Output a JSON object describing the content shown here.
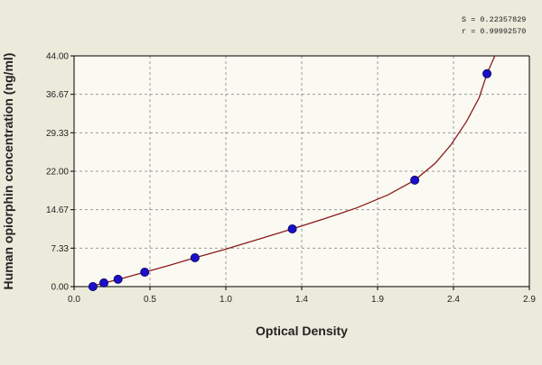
{
  "chart_data": {
    "type": "scatter",
    "title": "",
    "xlabel": "Optical Density",
    "ylabel": "Human opiorphin concentration (ng/ml)",
    "xlim": [
      0.0,
      2.9
    ],
    "ylim": [
      0.0,
      44.0
    ],
    "x_ticks": [
      "0.0",
      "0.5",
      "1.0",
      "1.4",
      "1.9",
      "2.4",
      "2.9"
    ],
    "y_ticks": [
      "0.00",
      "7.33",
      "14.67",
      "22.00",
      "29.33",
      "36.67",
      "44.00"
    ],
    "grid": true,
    "stats": {
      "s": "S = 0.22357829",
      "r": "r = 0.99992570"
    },
    "series": [
      {
        "points": [
          {
            "x": 0.12,
            "y": 0.0
          },
          {
            "x": 0.19,
            "y": 0.7
          },
          {
            "x": 0.28,
            "y": 1.4
          },
          {
            "x": 0.45,
            "y": 2.75
          },
          {
            "x": 0.77,
            "y": 5.5
          },
          {
            "x": 1.39,
            "y": 11.0
          },
          {
            "x": 2.17,
            "y": 20.3
          },
          {
            "x": 2.63,
            "y": 40.6
          }
        ],
        "color": "#1a10c8"
      }
    ],
    "fit_curve": {
      "color": "#8b1a1a",
      "points": [
        [
          0.1,
          0.0
        ],
        [
          0.2,
          0.75
        ],
        [
          0.3,
          1.5
        ],
        [
          0.45,
          2.75
        ],
        [
          0.6,
          4.0
        ],
        [
          0.77,
          5.5
        ],
        [
          0.95,
          7.0
        ],
        [
          1.15,
          8.8
        ],
        [
          1.39,
          11.0
        ],
        [
          1.6,
          13.0
        ],
        [
          1.8,
          15.0
        ],
        [
          2.0,
          17.5
        ],
        [
          2.17,
          20.3
        ],
        [
          2.3,
          23.5
        ],
        [
          2.4,
          27.0
        ],
        [
          2.5,
          31.5
        ],
        [
          2.58,
          36.0
        ],
        [
          2.63,
          40.6
        ],
        [
          2.68,
          44.0
        ]
      ]
    },
    "colors": {
      "background": "#eceadb",
      "plot_area": "#fafaf2",
      "grid": "#9a9a9a",
      "axis": "#000000"
    }
  }
}
